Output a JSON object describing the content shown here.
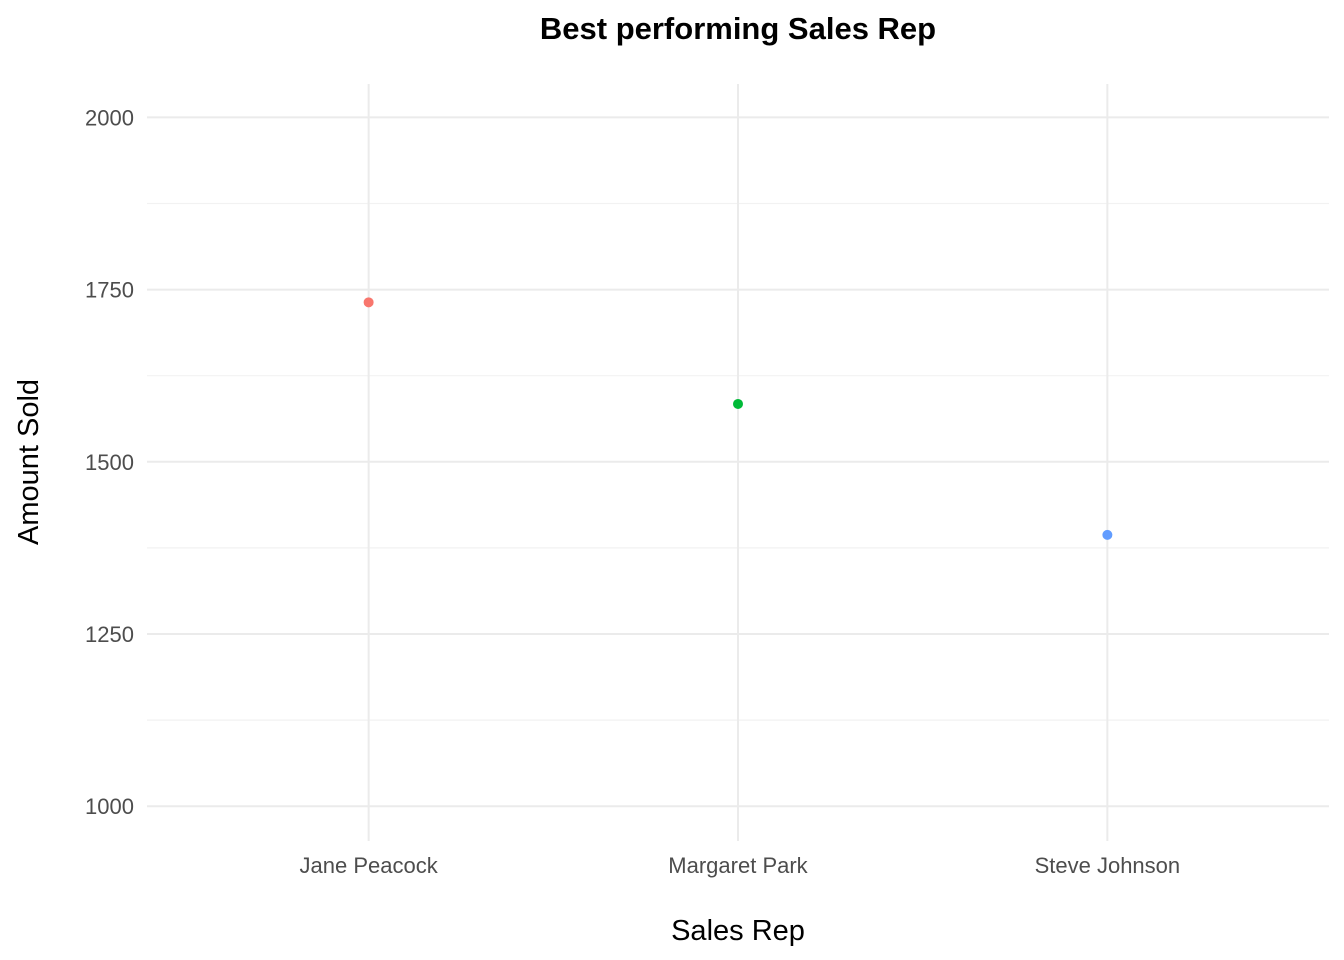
{
  "chart_data": {
    "type": "scatter",
    "title": "Best performing Sales Rep",
    "xlabel": "Sales Rep",
    "ylabel": "Amount Sold",
    "categories": [
      "Jane Peacock",
      "Margaret Park",
      "Steve Johnson"
    ],
    "values": [
      1731.51,
      1584.0,
      1393.92
    ],
    "colors": [
      "#F8766D",
      "#00BA38",
      "#619CFF"
    ],
    "yticks": [
      1000,
      1250,
      1500,
      1750,
      2000
    ],
    "ylim": [
      949.5,
      2048.5
    ],
    "grid": true,
    "legend": "none",
    "background": "#ffffff"
  }
}
